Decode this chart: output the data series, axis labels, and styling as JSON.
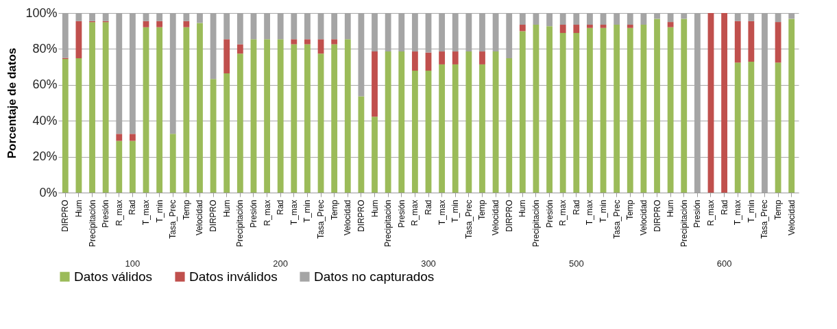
{
  "chart_data": {
    "type": "bar",
    "stacked": true,
    "ylabel": "Porcentaje de datos",
    "categories": [
      "DIRPRO",
      "Hum",
      "Precipitación",
      "Presión",
      "R_max",
      "Rad",
      "T_max",
      "T_min",
      "Tasa_Prec",
      "Temp",
      "Velocidad",
      "DIRPRO",
      "Hum",
      "Precipitación",
      "Presión",
      "R_max",
      "Rad",
      "T_max",
      "T_min",
      "Tasa_Prec",
      "Temp",
      "Velocidad",
      "DIRPRO",
      "Hum",
      "Precipitación",
      "Presión",
      "R_max",
      "Rad",
      "T_max",
      "T_min",
      "Tasa_Prec",
      "Temp",
      "Velocidad",
      "DIRPRO",
      "Hum",
      "Precipitación",
      "Presión",
      "R_max",
      "Rad",
      "T_max",
      "T_min",
      "Tasa_Prec",
      "Temp",
      "Velocidad",
      "DIRPRO",
      "Hum",
      "Precipitación",
      "Presión",
      "R_max",
      "Rad",
      "T_max",
      "T_min",
      "Tasa_Prec",
      "Temp",
      "Velocidad"
    ],
    "annotations": [
      "100",
      "200",
      "300",
      "500",
      "600"
    ],
    "ylim": [
      0,
      100
    ],
    "yticks": [
      {
        "value": 0,
        "label": "0%"
      },
      {
        "value": 20,
        "label": "20%"
      },
      {
        "value": 40,
        "label": "40%"
      },
      {
        "value": 60,
        "label": "60%"
      },
      {
        "value": 80,
        "label": "80%"
      },
      {
        "value": 100,
        "label": "100%"
      }
    ],
    "grid": "y",
    "legend": "bottom",
    "series": [
      {
        "name": "Datos válidos",
        "color": "#9bbb59",
        "values": [
          74.4,
          74.8,
          94.9,
          94.9,
          28.8,
          28.8,
          92.1,
          92.1,
          32.7,
          92.1,
          94.5,
          63.3,
          66.4,
          77.4,
          85.4,
          85.4,
          85.4,
          82.6,
          82.6,
          77.4,
          82.6,
          85.4,
          53.6,
          42.3,
          78.6,
          78.6,
          67.9,
          67.9,
          71.4,
          71.4,
          78.6,
          71.4,
          78.6,
          74.8,
          89.9,
          93.5,
          92.7,
          88.9,
          88.9,
          91.7,
          91.7,
          93.5,
          91.7,
          93.5,
          96.8,
          92.1,
          96.8,
          0,
          0,
          0,
          72.4,
          72.9,
          0,
          72.4,
          96.8
        ]
      },
      {
        "name": "Datos inválidos",
        "color": "#c0504d",
        "values": [
          0.6,
          20.7,
          0.6,
          0.6,
          3.9,
          3.9,
          3.4,
          3.4,
          0,
          3.4,
          0,
          0,
          19,
          5.2,
          0,
          0,
          0,
          2.8,
          2.8,
          8,
          2.8,
          0,
          0,
          36.3,
          0,
          0,
          10.7,
          10.1,
          7.2,
          7.2,
          0,
          7.2,
          0,
          0,
          3.6,
          0,
          0,
          4.6,
          4.6,
          1.8,
          1.8,
          0,
          1.8,
          0,
          0,
          2.9,
          0,
          0,
          100,
          100,
          23.1,
          22.6,
          0,
          22.6,
          0
        ]
      },
      {
        "name": "Datos no capturados",
        "color": "#a5a5a5",
        "values": [
          25,
          4.5,
          4.5,
          4.5,
          67.3,
          67.3,
          4.5,
          4.5,
          67.3,
          4.5,
          5.5,
          36.7,
          14.6,
          17.4,
          14.6,
          14.6,
          14.6,
          14.6,
          14.6,
          14.6,
          14.6,
          14.6,
          46.4,
          21.4,
          21.4,
          21.4,
          21.4,
          22,
          21.4,
          21.4,
          21.4,
          21.4,
          21.4,
          25.2,
          6.5,
          6.5,
          7.3,
          6.5,
          6.5,
          6.5,
          6.5,
          6.5,
          6.5,
          6.5,
          3.2,
          5,
          3.2,
          100,
          0,
          0,
          4.5,
          4.5,
          100,
          5,
          3.2
        ]
      }
    ]
  }
}
